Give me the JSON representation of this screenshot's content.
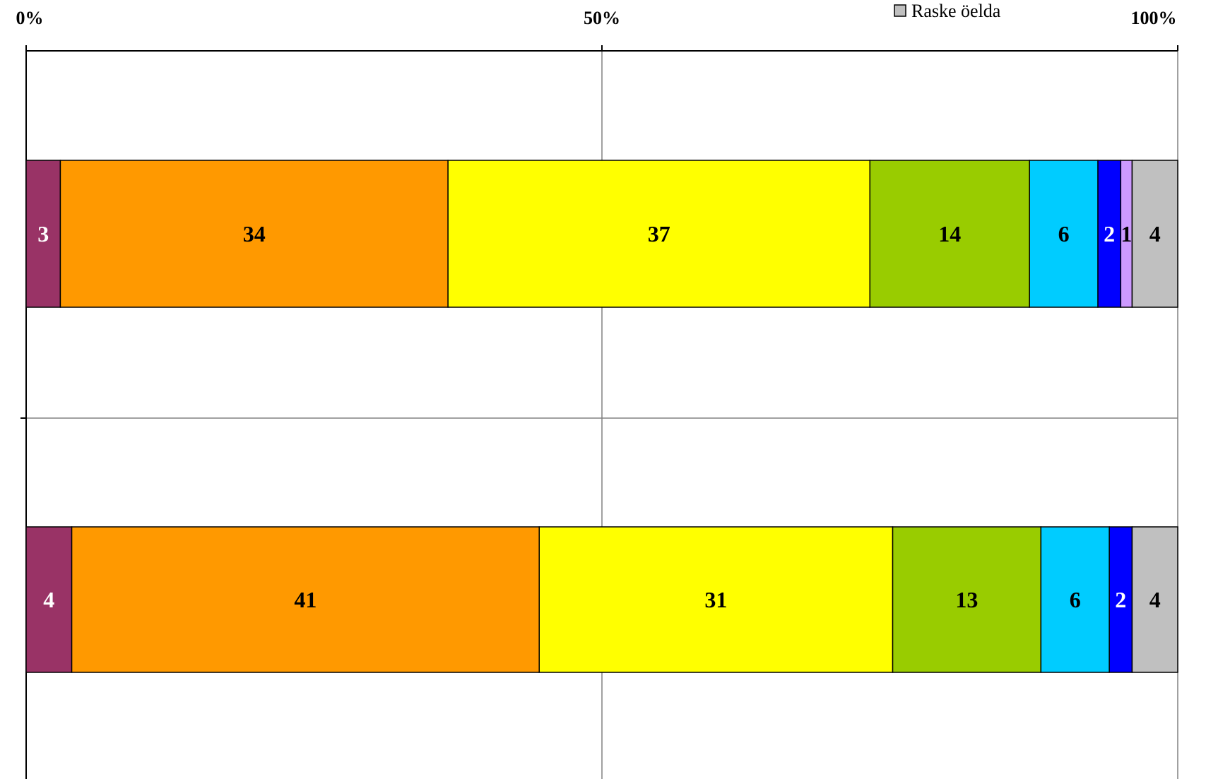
{
  "chart_data": {
    "type": "bar",
    "orientation": "horizontal",
    "stacked": "percent",
    "title": "",
    "xlabel": "",
    "ylabel": "",
    "xlim": [
      0,
      100
    ],
    "x_ticks": [
      "0%",
      "50%",
      "100%"
    ],
    "grid": true,
    "categories": [
      "",
      ""
    ],
    "series": [
      {
        "color": "#993366",
        "label_color": "#ffffff",
        "values": [
          3,
          4
        ]
      },
      {
        "color": "#ff9900",
        "label_color": "#000000",
        "values": [
          34,
          41
        ]
      },
      {
        "color": "#ffff00",
        "label_color": "#000000",
        "values": [
          37,
          31
        ]
      },
      {
        "color": "#99cc00",
        "label_color": "#000000",
        "values": [
          14,
          13
        ]
      },
      {
        "color": "#00ccff",
        "label_color": "#000000",
        "values": [
          6,
          6
        ]
      },
      {
        "color": "#0000ff",
        "label_color": "#ffffff",
        "values": [
          2,
          2
        ]
      },
      {
        "color": "#cc99ff",
        "label_color": "#000000",
        "values": [
          1,
          0
        ]
      },
      {
        "name": "Raske öelda",
        "color": "#c0c0c0",
        "label_color": "#000000",
        "values": [
          4,
          4
        ]
      }
    ],
    "legend": {
      "position": "top-right",
      "visible_entries": [
        "Raske öelda"
      ]
    }
  }
}
